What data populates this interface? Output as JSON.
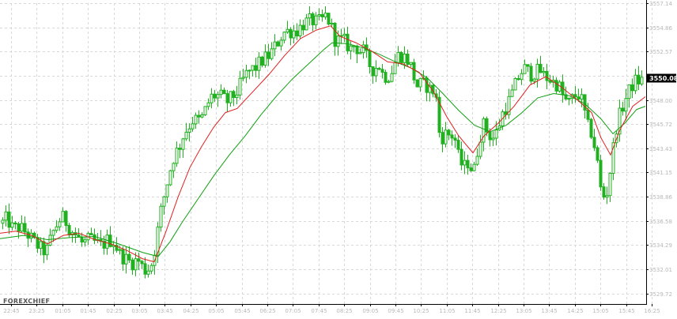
{
  "watermark": "FOREXCHIEF",
  "chart_data": {
    "type": "candlestick",
    "grid": true,
    "legend": "none",
    "ylim": [
      3528.72,
      3557.14
    ],
    "y_ticks": [
      {
        "value": 3557.14,
        "label": "3557.14"
      },
      {
        "value": 3554.86,
        "label": "3554.86"
      },
      {
        "value": 3552.57,
        "label": "3552.57"
      },
      {
        "value": 3550.29,
        "label": "3550.29"
      },
      {
        "value": 3548.0,
        "label": "3548.00"
      },
      {
        "value": 3545.72,
        "label": "3545.72"
      },
      {
        "value": 3543.43,
        "label": "3543.43"
      },
      {
        "value": 3541.15,
        "label": "3541.15"
      },
      {
        "value": 3538.86,
        "label": "3538.86"
      },
      {
        "value": 3536.58,
        "label": "3536.58"
      },
      {
        "value": 3534.29,
        "label": "3534.29"
      },
      {
        "value": 3532.01,
        "label": "3532.01"
      },
      {
        "value": 3529.72,
        "label": "3529.72"
      }
    ],
    "x_ticks": [
      "22:45",
      "23:25",
      "01:05",
      "01:45",
      "02:25",
      "03:05",
      "03:45",
      "04:25",
      "05:05",
      "05:45",
      "06:25",
      "07:05",
      "07:45",
      "08:25",
      "09:05",
      "09:45",
      "10:25",
      "11:05",
      "11:45",
      "12:25",
      "13:05",
      "13:45",
      "14:25",
      "15:05",
      "15:45",
      "16:25"
    ],
    "current_price": {
      "label": "3550.08",
      "value": 3550.08,
      "color": "#000000"
    },
    "colors": {
      "candle": "#20b020",
      "ma_fast": "#e02020",
      "ma_slow": "#10a010",
      "grid": "#d8d8d8",
      "axis": "#000000"
    },
    "price_path": [
      [
        0,
        3536.2
      ],
      [
        8,
        3536.8
      ],
      [
        16,
        3535.8
      ],
      [
        24,
        3536.0
      ],
      [
        32,
        3535.5
      ],
      [
        40,
        3534.8
      ],
      [
        50,
        3534.0
      ],
      [
        58,
        3533.6
      ],
      [
        66,
        3535.4
      ],
      [
        74,
        3536.6
      ],
      [
        80,
        3536.9
      ],
      [
        88,
        3535.8
      ],
      [
        96,
        3535.2
      ],
      [
        104,
        3534.4
      ],
      [
        112,
        3534.8
      ],
      [
        120,
        3534.5
      ],
      [
        128,
        3534.2
      ],
      [
        136,
        3534.8
      ],
      [
        144,
        3534.6
      ],
      [
        150,
        3533.5
      ],
      [
        158,
        3533.0
      ],
      [
        166,
        3532.6
      ],
      [
        174,
        3532.9
      ],
      [
        182,
        3531.9
      ],
      [
        190,
        3532.2
      ],
      [
        196,
        3534.2
      ],
      [
        202,
        3537.2
      ],
      [
        208,
        3539.2
      ],
      [
        214,
        3541.2
      ],
      [
        220,
        3542.8
      ],
      [
        226,
        3543.5
      ],
      [
        232,
        3544.8
      ],
      [
        238,
        3545.5
      ],
      [
        244,
        3546.2
      ],
      [
        250,
        3546.0
      ],
      [
        256,
        3546.4
      ],
      [
        262,
        3547.6
      ],
      [
        268,
        3548.4
      ],
      [
        274,
        3548.4
      ],
      [
        280,
        3548.3
      ],
      [
        286,
        3547.8
      ],
      [
        292,
        3548.2
      ],
      [
        298,
        3548.6
      ],
      [
        304,
        3549.5
      ],
      [
        310,
        3550.3
      ],
      [
        316,
        3550.8
      ],
      [
        322,
        3551.0
      ],
      [
        328,
        3551.5
      ],
      [
        334,
        3551.9
      ],
      [
        340,
        3552.2
      ],
      [
        346,
        3552.9
      ],
      [
        352,
        3553.6
      ],
      [
        358,
        3554.4
      ],
      [
        364,
        3554.5
      ],
      [
        370,
        3554.5
      ],
      [
        376,
        3554.6
      ],
      [
        382,
        3555.1
      ],
      [
        388,
        3555.4
      ],
      [
        394,
        3555.5
      ],
      [
        400,
        3555.3
      ],
      [
        406,
        3555.5
      ],
      [
        412,
        3556.0
      ],
      [
        418,
        3555.0
      ],
      [
        424,
        3553.5
      ],
      [
        430,
        3553.7
      ],
      [
        436,
        3553.5
      ],
      [
        442,
        3552.8
      ],
      [
        448,
        3553.2
      ],
      [
        454,
        3552.6
      ],
      [
        460,
        3552.6
      ],
      [
        466,
        3551.4
      ],
      [
        472,
        3550.8
      ],
      [
        478,
        3551.4
      ],
      [
        484,
        3550.3
      ],
      [
        490,
        3550.2
      ],
      [
        496,
        3550.9
      ],
      [
        502,
        3552.2
      ],
      [
        508,
        3552.2
      ],
      [
        514,
        3551.9
      ],
      [
        520,
        3551.0
      ],
      [
        526,
        3549.3
      ],
      [
        532,
        3549.5
      ],
      [
        538,
        3549.4
      ],
      [
        544,
        3548.9
      ],
      [
        550,
        3548.8
      ],
      [
        556,
        3544.2
      ],
      [
        562,
        3544.8
      ],
      [
        568,
        3544.7
      ],
      [
        574,
        3544.6
      ],
      [
        580,
        3542.3
      ],
      [
        586,
        3541.6
      ],
      [
        592,
        3542.2
      ],
      [
        598,
        3541.0
      ],
      [
        604,
        3543.6
      ],
      [
        610,
        3545.8
      ],
      [
        616,
        3545.0
      ],
      [
        622,
        3544.3
      ],
      [
        628,
        3545.0
      ],
      [
        634,
        3546.6
      ],
      [
        640,
        3547.4
      ],
      [
        646,
        3548.4
      ],
      [
        652,
        3549.6
      ],
      [
        658,
        3550.6
      ],
      [
        664,
        3551.0
      ],
      [
        670,
        3550.4
      ],
      [
        676,
        3550.6
      ],
      [
        682,
        3550.8
      ],
      [
        688,
        3550.2
      ],
      [
        694,
        3550.0
      ],
      [
        700,
        3549.6
      ],
      [
        706,
        3549.4
      ],
      [
        712,
        3548.2
      ],
      [
        718,
        3547.6
      ],
      [
        724,
        3548.2
      ],
      [
        730,
        3548.6
      ],
      [
        736,
        3547.8
      ],
      [
        742,
        3545.6
      ],
      [
        748,
        3544.8
      ],
      [
        754,
        3542.6
      ],
      [
        760,
        3539.0
      ],
      [
        766,
        3538.8
      ],
      [
        772,
        3541.8
      ],
      [
        778,
        3545.2
      ],
      [
        784,
        3546.8
      ],
      [
        790,
        3548.0
      ],
      [
        796,
        3549.0
      ],
      [
        802,
        3549.8
      ],
      [
        808,
        3549.8
      ],
      [
        814,
        3549.9
      ]
    ],
    "ma_fast_path": [
      [
        0,
        3535.4
      ],
      [
        20,
        3535.6
      ],
      [
        40,
        3535.2
      ],
      [
        60,
        3534.4
      ],
      [
        80,
        3535.2
      ],
      [
        100,
        3535.4
      ],
      [
        120,
        3534.8
      ],
      [
        140,
        3534.4
      ],
      [
        160,
        3533.8
      ],
      [
        180,
        3533.0
      ],
      [
        195,
        3532.7
      ],
      [
        210,
        3535.6
      ],
      [
        225,
        3538.8
      ],
      [
        240,
        3541.6
      ],
      [
        255,
        3543.6
      ],
      [
        270,
        3545.4
      ],
      [
        285,
        3546.8
      ],
      [
        300,
        3547.2
      ],
      [
        320,
        3548.8
      ],
      [
        340,
        3550.4
      ],
      [
        360,
        3552.2
      ],
      [
        380,
        3553.8
      ],
      [
        400,
        3554.6
      ],
      [
        418,
        3555.0
      ],
      [
        430,
        3554.0
      ],
      [
        450,
        3553.4
      ],
      [
        470,
        3552.6
      ],
      [
        490,
        3551.6
      ],
      [
        510,
        3551.4
      ],
      [
        530,
        3550.6
      ],
      [
        548,
        3548.8
      ],
      [
        565,
        3546.4
      ],
      [
        580,
        3544.6
      ],
      [
        598,
        3543.0
      ],
      [
        612,
        3544.6
      ],
      [
        630,
        3545.8
      ],
      [
        650,
        3547.4
      ],
      [
        670,
        3549.4
      ],
      [
        690,
        3550.2
      ],
      [
        710,
        3549.2
      ],
      [
        730,
        3548.0
      ],
      [
        748,
        3546.8
      ],
      [
        760,
        3544.4
      ],
      [
        772,
        3542.8
      ],
      [
        784,
        3545.2
      ],
      [
        800,
        3547.4
      ],
      [
        816,
        3548.3
      ]
    ],
    "ma_slow_path": [
      [
        0,
        3534.9
      ],
      [
        30,
        3535.2
      ],
      [
        60,
        3534.8
      ],
      [
        90,
        3535.0
      ],
      [
        120,
        3535.1
      ],
      [
        150,
        3534.4
      ],
      [
        180,
        3533.6
      ],
      [
        200,
        3533.2
      ],
      [
        215,
        3534.6
      ],
      [
        230,
        3536.4
      ],
      [
        250,
        3538.6
      ],
      [
        270,
        3540.8
      ],
      [
        290,
        3542.8
      ],
      [
        310,
        3544.6
      ],
      [
        330,
        3546.6
      ],
      [
        350,
        3548.4
      ],
      [
        370,
        3550.0
      ],
      [
        390,
        3551.4
      ],
      [
        410,
        3552.8
      ],
      [
        420,
        3553.4
      ],
      [
        440,
        3553.3
      ],
      [
        460,
        3552.9
      ],
      [
        480,
        3552.3
      ],
      [
        500,
        3551.6
      ],
      [
        520,
        3551.0
      ],
      [
        540,
        3550.1
      ],
      [
        560,
        3548.6
      ],
      [
        580,
        3547.0
      ],
      [
        600,
        3545.6
      ],
      [
        620,
        3545.0
      ],
      [
        640,
        3545.6
      ],
      [
        660,
        3546.8
      ],
      [
        680,
        3548.2
      ],
      [
        700,
        3548.6
      ],
      [
        720,
        3548.4
      ],
      [
        740,
        3547.6
      ],
      [
        760,
        3546.2
      ],
      [
        775,
        3544.8
      ],
      [
        790,
        3545.8
      ],
      [
        805,
        3547.1
      ],
      [
        816,
        3547.4
      ]
    ]
  }
}
